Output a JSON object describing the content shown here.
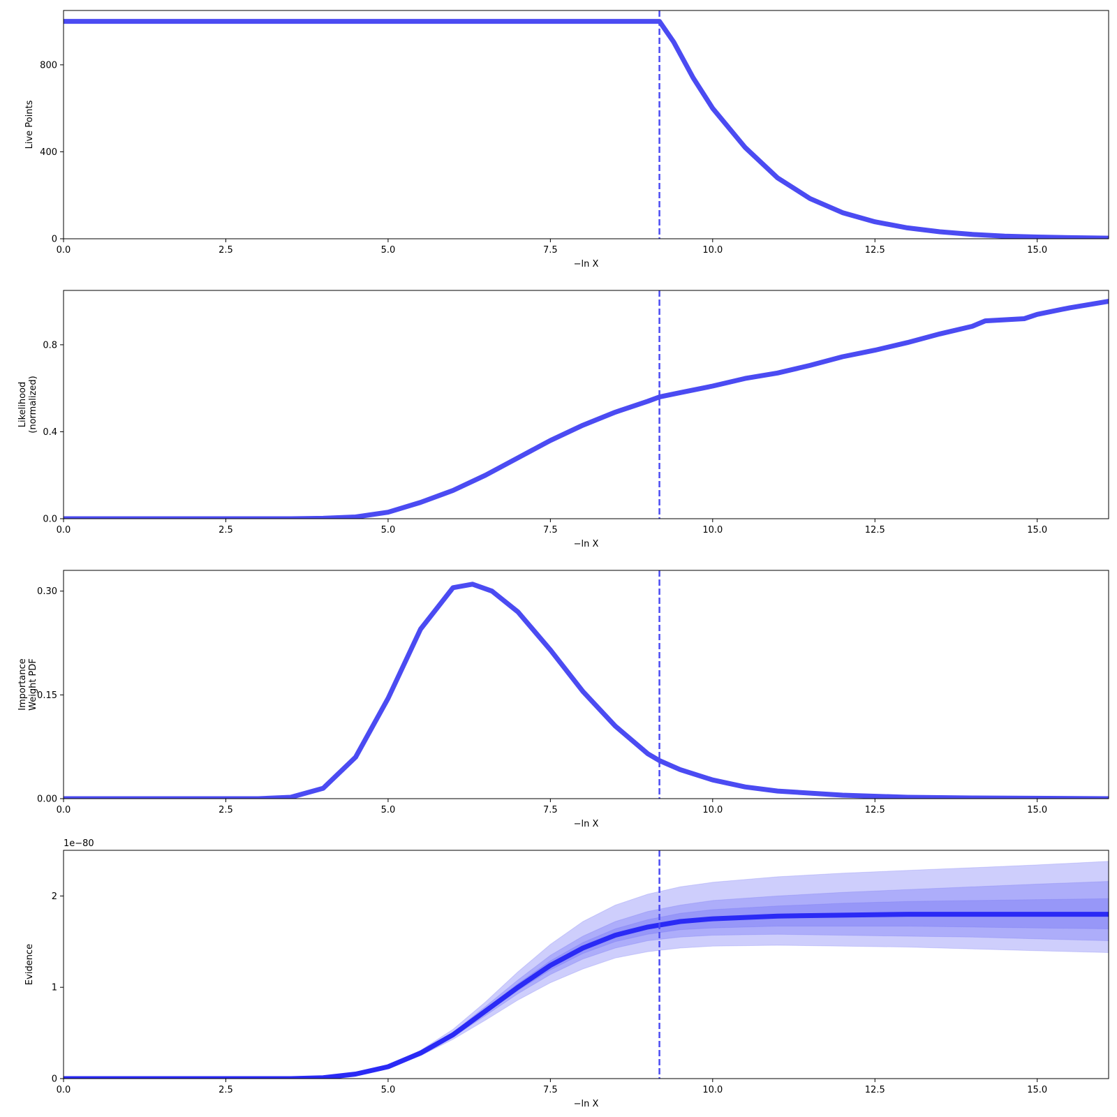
{
  "colors": {
    "line": "#4b4bf2",
    "median": "#2a2af5",
    "band": "#6b6bf5",
    "axis": "#000000",
    "background": "#ffffff"
  },
  "chart_data": [
    {
      "type": "line",
      "xlabel": "−ln X",
      "ylabel": [
        "Live Points"
      ],
      "xlim": [
        0,
        16.1
      ],
      "ylim": [
        0,
        1050
      ],
      "xticks": [
        "0.0",
        "2.5",
        "5.0",
        "7.5",
        "10.0",
        "12.5",
        "15.0"
      ],
      "yticks": [
        "0",
        "400",
        "800"
      ],
      "ytick_values": [
        0,
        400,
        800
      ],
      "vline_x": 9.18,
      "series": [
        {
          "x": [
            0,
            9.18,
            9.4,
            9.7,
            10.0,
            10.5,
            11.0,
            11.5,
            12.0,
            12.5,
            13.0,
            13.5,
            14.0,
            14.5,
            15.0,
            15.5,
            16.1
          ],
          "y": [
            1000,
            1000,
            905,
            740,
            600,
            420,
            280,
            185,
            120,
            78,
            50,
            32,
            20,
            12,
            8,
            5,
            3
          ]
        }
      ]
    },
    {
      "type": "line",
      "xlabel": "−ln X",
      "ylabel": [
        "Likelihood",
        "(normalized)"
      ],
      "xlim": [
        0,
        16.1
      ],
      "ylim": [
        0,
        1.05
      ],
      "xticks": [
        "0.0",
        "2.5",
        "5.0",
        "7.5",
        "10.0",
        "12.5",
        "15.0"
      ],
      "yticks": [
        "0.0",
        "0.4",
        "0.8"
      ],
      "ytick_values": [
        0,
        0.4,
        0.8
      ],
      "vline_x": 9.18,
      "series": [
        {
          "x": [
            0,
            3.5,
            4.0,
            4.5,
            5.0,
            5.5,
            6.0,
            6.5,
            7.0,
            7.5,
            8.0,
            8.5,
            9.0,
            9.18,
            9.5,
            10.0,
            10.5,
            11.0,
            11.5,
            12.0,
            12.5,
            13.0,
            13.5,
            14.0,
            14.2,
            14.8,
            15.0,
            15.5,
            16.1
          ],
          "y": [
            0,
            0.0,
            0.002,
            0.008,
            0.03,
            0.075,
            0.13,
            0.2,
            0.28,
            0.36,
            0.43,
            0.49,
            0.54,
            0.56,
            0.58,
            0.61,
            0.645,
            0.67,
            0.705,
            0.745,
            0.775,
            0.81,
            0.85,
            0.885,
            0.91,
            0.92,
            0.94,
            0.97,
            1.0
          ]
        }
      ]
    },
    {
      "type": "line",
      "xlabel": "−ln X",
      "ylabel": [
        "Importance",
        "Weight PDF"
      ],
      "xlim": [
        0,
        16.1
      ],
      "ylim": [
        0,
        0.33
      ],
      "xticks": [
        "0.0",
        "2.5",
        "5.0",
        "7.5",
        "10.0",
        "12.5",
        "15.0"
      ],
      "yticks": [
        "0.00",
        "0.15",
        "0.30"
      ],
      "ytick_values": [
        0,
        0.15,
        0.3
      ],
      "vline_x": 9.18,
      "series": [
        {
          "x": [
            0,
            3.0,
            3.5,
            4.0,
            4.5,
            5.0,
            5.5,
            6.0,
            6.3,
            6.6,
            7.0,
            7.5,
            8.0,
            8.5,
            9.0,
            9.18,
            9.5,
            10.0,
            10.5,
            11.0,
            12.0,
            13.0,
            14.0,
            16.1
          ],
          "y": [
            0,
            0.0,
            0.002,
            0.015,
            0.06,
            0.145,
            0.245,
            0.305,
            0.31,
            0.3,
            0.27,
            0.215,
            0.155,
            0.105,
            0.065,
            0.055,
            0.042,
            0.027,
            0.017,
            0.011,
            0.005,
            0.002,
            0.001,
            0.0
          ]
        }
      ]
    },
    {
      "type": "area",
      "xlabel": "−ln X",
      "ylabel": [
        "Evidence"
      ],
      "offset_text": "1e−80",
      "xlim": [
        0,
        16.1
      ],
      "ylim": [
        0,
        2.5
      ],
      "xticks": [
        "0.0",
        "2.5",
        "5.0",
        "7.5",
        "10.0",
        "12.5",
        "15.0"
      ],
      "yticks": [
        "0",
        "1",
        "2"
      ],
      "ytick_values": [
        0,
        1,
        2
      ],
      "vline_x": 9.18,
      "x": [
        0,
        3.5,
        4.0,
        4.5,
        5.0,
        5.5,
        6.0,
        6.5,
        7.0,
        7.5,
        8.0,
        8.5,
        9.0,
        9.5,
        10.0,
        11.0,
        12.0,
        13.0,
        14.0,
        15.0,
        16.1
      ],
      "median": [
        0,
        0.0,
        0.01,
        0.05,
        0.13,
        0.28,
        0.48,
        0.74,
        1.0,
        1.24,
        1.43,
        1.57,
        1.66,
        1.72,
        1.75,
        1.78,
        1.79,
        1.8,
        1.8,
        1.8,
        1.8
      ],
      "bands": [
        {
          "lower": [
            0,
            0.0,
            0.01,
            0.05,
            0.12,
            0.25,
            0.43,
            0.64,
            0.86,
            1.05,
            1.2,
            1.32,
            1.39,
            1.43,
            1.45,
            1.46,
            1.45,
            1.44,
            1.42,
            1.4,
            1.38
          ],
          "upper": [
            0,
            0.0,
            0.01,
            0.05,
            0.14,
            0.31,
            0.54,
            0.84,
            1.17,
            1.47,
            1.72,
            1.9,
            2.02,
            2.1,
            2.15,
            2.21,
            2.25,
            2.28,
            2.31,
            2.34,
            2.38
          ]
        },
        {
          "lower": [
            0,
            0.0,
            0.01,
            0.05,
            0.125,
            0.265,
            0.455,
            0.69,
            0.93,
            1.14,
            1.31,
            1.43,
            1.51,
            1.55,
            1.57,
            1.58,
            1.57,
            1.56,
            1.55,
            1.53,
            1.51
          ],
          "upper": [
            0,
            0.0,
            0.01,
            0.05,
            0.135,
            0.295,
            0.505,
            0.79,
            1.08,
            1.35,
            1.56,
            1.72,
            1.83,
            1.9,
            1.95,
            2.0,
            2.04,
            2.07,
            2.1,
            2.13,
            2.16
          ]
        },
        {
          "lower": [
            0,
            0.0,
            0.01,
            0.05,
            0.128,
            0.272,
            0.468,
            0.715,
            0.965,
            1.19,
            1.37,
            1.5,
            1.58,
            1.63,
            1.65,
            1.67,
            1.67,
            1.67,
            1.66,
            1.65,
            1.64
          ],
          "upper": [
            0,
            0.0,
            0.01,
            0.05,
            0.132,
            0.288,
            0.492,
            0.765,
            1.04,
            1.29,
            1.49,
            1.64,
            1.74,
            1.81,
            1.85,
            1.89,
            1.92,
            1.94,
            1.95,
            1.96,
            1.97
          ]
        }
      ]
    }
  ]
}
